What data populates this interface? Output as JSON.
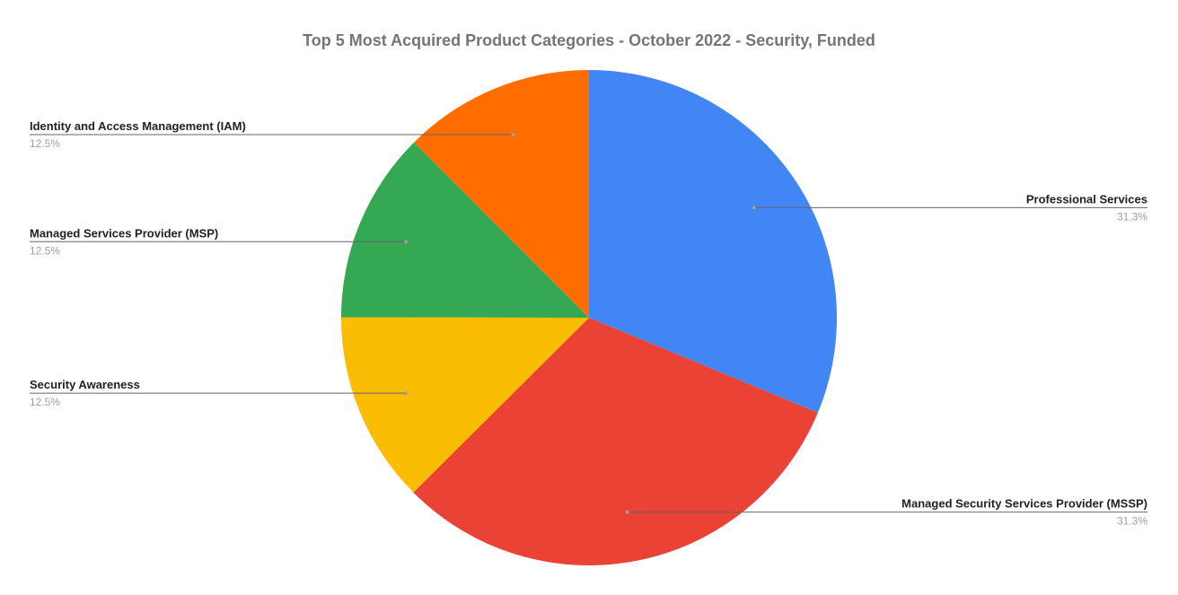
{
  "chart_data": {
    "type": "pie",
    "title": "Top 5 Most Acquired Product Categories - October 2022 - Security, Funded",
    "start_angle_deg": 0,
    "direction": "clockwise",
    "slices": [
      {
        "label": "Professional Services",
        "value": 31.3,
        "display": "31.3%",
        "color": "#4285f4",
        "label_side": "right"
      },
      {
        "label": "Managed Security Services Provider (MSSP)",
        "value": 31.3,
        "display": "31.3%",
        "color": "#ea4335",
        "label_side": "right"
      },
      {
        "label": "Security Awareness",
        "value": 12.5,
        "display": "12.5%",
        "color": "#fbbc04",
        "label_side": "left"
      },
      {
        "label": "Managed Services Provider (MSP)",
        "value": 12.5,
        "display": "12.5%",
        "color": "#34a853",
        "label_side": "left"
      },
      {
        "label": "Identity and Access Management (IAM)",
        "value": 12.5,
        "display": "12.5%",
        "color": "#ff6d01",
        "label_side": "left"
      }
    ]
  }
}
